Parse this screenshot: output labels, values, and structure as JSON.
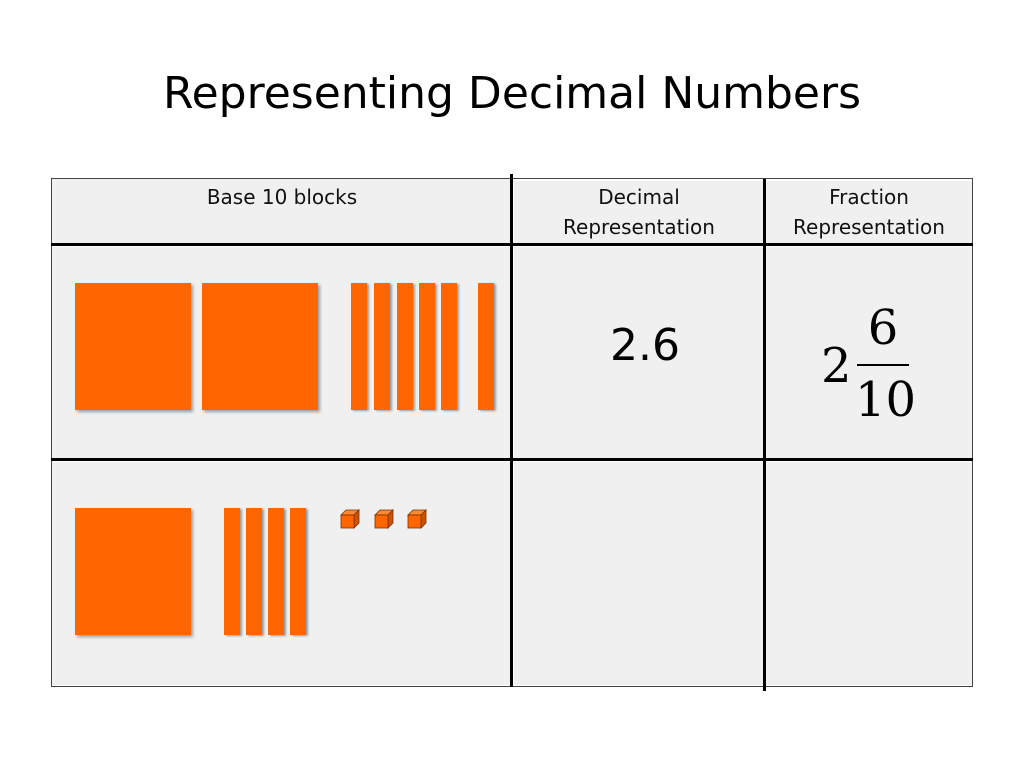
{
  "slide": {
    "title": "Representing Decimal Numbers"
  },
  "table": {
    "headers": {
      "blocks": "Base 10 blocks",
      "decimal_line1": "Decimal",
      "decimal_line2": "Representation",
      "fraction_line1": "Fraction",
      "fraction_line2": "Representation"
    },
    "rows": [
      {
        "blocks": {
          "flats": 2,
          "rods": 6,
          "units": 0
        },
        "decimal": "2.6",
        "fraction": {
          "whole": "2",
          "numerator": "6",
          "denominator": "10"
        }
      },
      {
        "blocks": {
          "flats": 1,
          "rods": 4,
          "units": 3
        },
        "decimal": "",
        "fraction": {
          "whole": "",
          "numerator": "",
          "denominator": ""
        }
      }
    ]
  },
  "colors": {
    "block_orange": "#ff6600",
    "cell_background": "#f0f0f0"
  }
}
